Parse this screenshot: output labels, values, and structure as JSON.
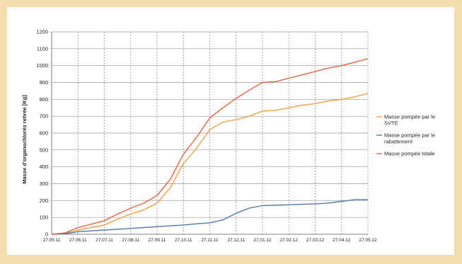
{
  "chart_data": {
    "type": "line",
    "ylabel": "Masse d'organochlorés retirée [Kg]",
    "ylim": [
      0,
      1200
    ],
    "y_ticks": [
      0,
      100,
      200,
      300,
      400,
      500,
      600,
      700,
      800,
      900,
      1000,
      1100,
      1200
    ],
    "x_ticks": [
      "27.05.11",
      "27.06.11",
      "27.07.11",
      "27.08.11",
      "27.09.11",
      "27.10.11",
      "27.11.11",
      "27.12.11",
      "27.01.12",
      "27.02.12",
      "27.03.12",
      "27.04.12",
      "27.05.12"
    ],
    "grid": "on",
    "legend_position": "right",
    "series": [
      {
        "name": "Masse pompée par le SVTE",
        "color": "#f0a040",
        "points": [
          [
            0,
            0
          ],
          [
            0.5,
            5
          ],
          [
            1,
            25
          ],
          [
            1.5,
            40
          ],
          [
            2,
            55
          ],
          [
            2.5,
            90
          ],
          [
            3,
            120
          ],
          [
            3.5,
            145
          ],
          [
            4,
            185
          ],
          [
            4.5,
            275
          ],
          [
            5,
            420
          ],
          [
            5.5,
            510
          ],
          [
            6,
            620
          ],
          [
            6.5,
            665
          ],
          [
            7,
            680
          ],
          [
            7.5,
            700
          ],
          [
            8,
            730
          ],
          [
            8.5,
            735
          ],
          [
            9,
            750
          ],
          [
            9.5,
            765
          ],
          [
            10,
            775
          ],
          [
            10.5,
            790
          ],
          [
            11,
            800
          ],
          [
            11.5,
            815
          ],
          [
            12,
            835
          ]
        ]
      },
      {
        "name": "Masse pompée par le rabattement",
        "color": "#5577b0",
        "points": [
          [
            0,
            0
          ],
          [
            0.5,
            3
          ],
          [
            1,
            15
          ],
          [
            1.5,
            20
          ],
          [
            2,
            25
          ],
          [
            2.5,
            30
          ],
          [
            3,
            35
          ],
          [
            3.5,
            40
          ],
          [
            4,
            45
          ],
          [
            4.5,
            50
          ],
          [
            5,
            55
          ],
          [
            5.5,
            62
          ],
          [
            6,
            68
          ],
          [
            6.5,
            85
          ],
          [
            7,
            125
          ],
          [
            7.5,
            155
          ],
          [
            8,
            170
          ],
          [
            8.5,
            172
          ],
          [
            9,
            175
          ],
          [
            9.5,
            178
          ],
          [
            10,
            180
          ],
          [
            10.5,
            185
          ],
          [
            11,
            195
          ],
          [
            11.5,
            205
          ],
          [
            12,
            205
          ]
        ]
      },
      {
        "name": "Masse pompée totale",
        "color": "#ec6040",
        "points": [
          [
            0,
            0
          ],
          [
            0.5,
            8
          ],
          [
            1,
            40
          ],
          [
            1.5,
            60
          ],
          [
            2,
            80
          ],
          [
            2.5,
            120
          ],
          [
            3,
            155
          ],
          [
            3.5,
            185
          ],
          [
            4,
            230
          ],
          [
            4.5,
            325
          ],
          [
            5,
            475
          ],
          [
            5.5,
            575
          ],
          [
            6,
            690
          ],
          [
            6.5,
            750
          ],
          [
            7,
            805
          ],
          [
            7.5,
            855
          ],
          [
            8,
            900
          ],
          [
            8.5,
            905
          ],
          [
            9,
            925
          ],
          [
            9.5,
            945
          ],
          [
            10,
            965
          ],
          [
            10.5,
            985
          ],
          [
            11,
            1000
          ],
          [
            11.5,
            1020
          ],
          [
            12,
            1040
          ]
        ]
      }
    ]
  }
}
